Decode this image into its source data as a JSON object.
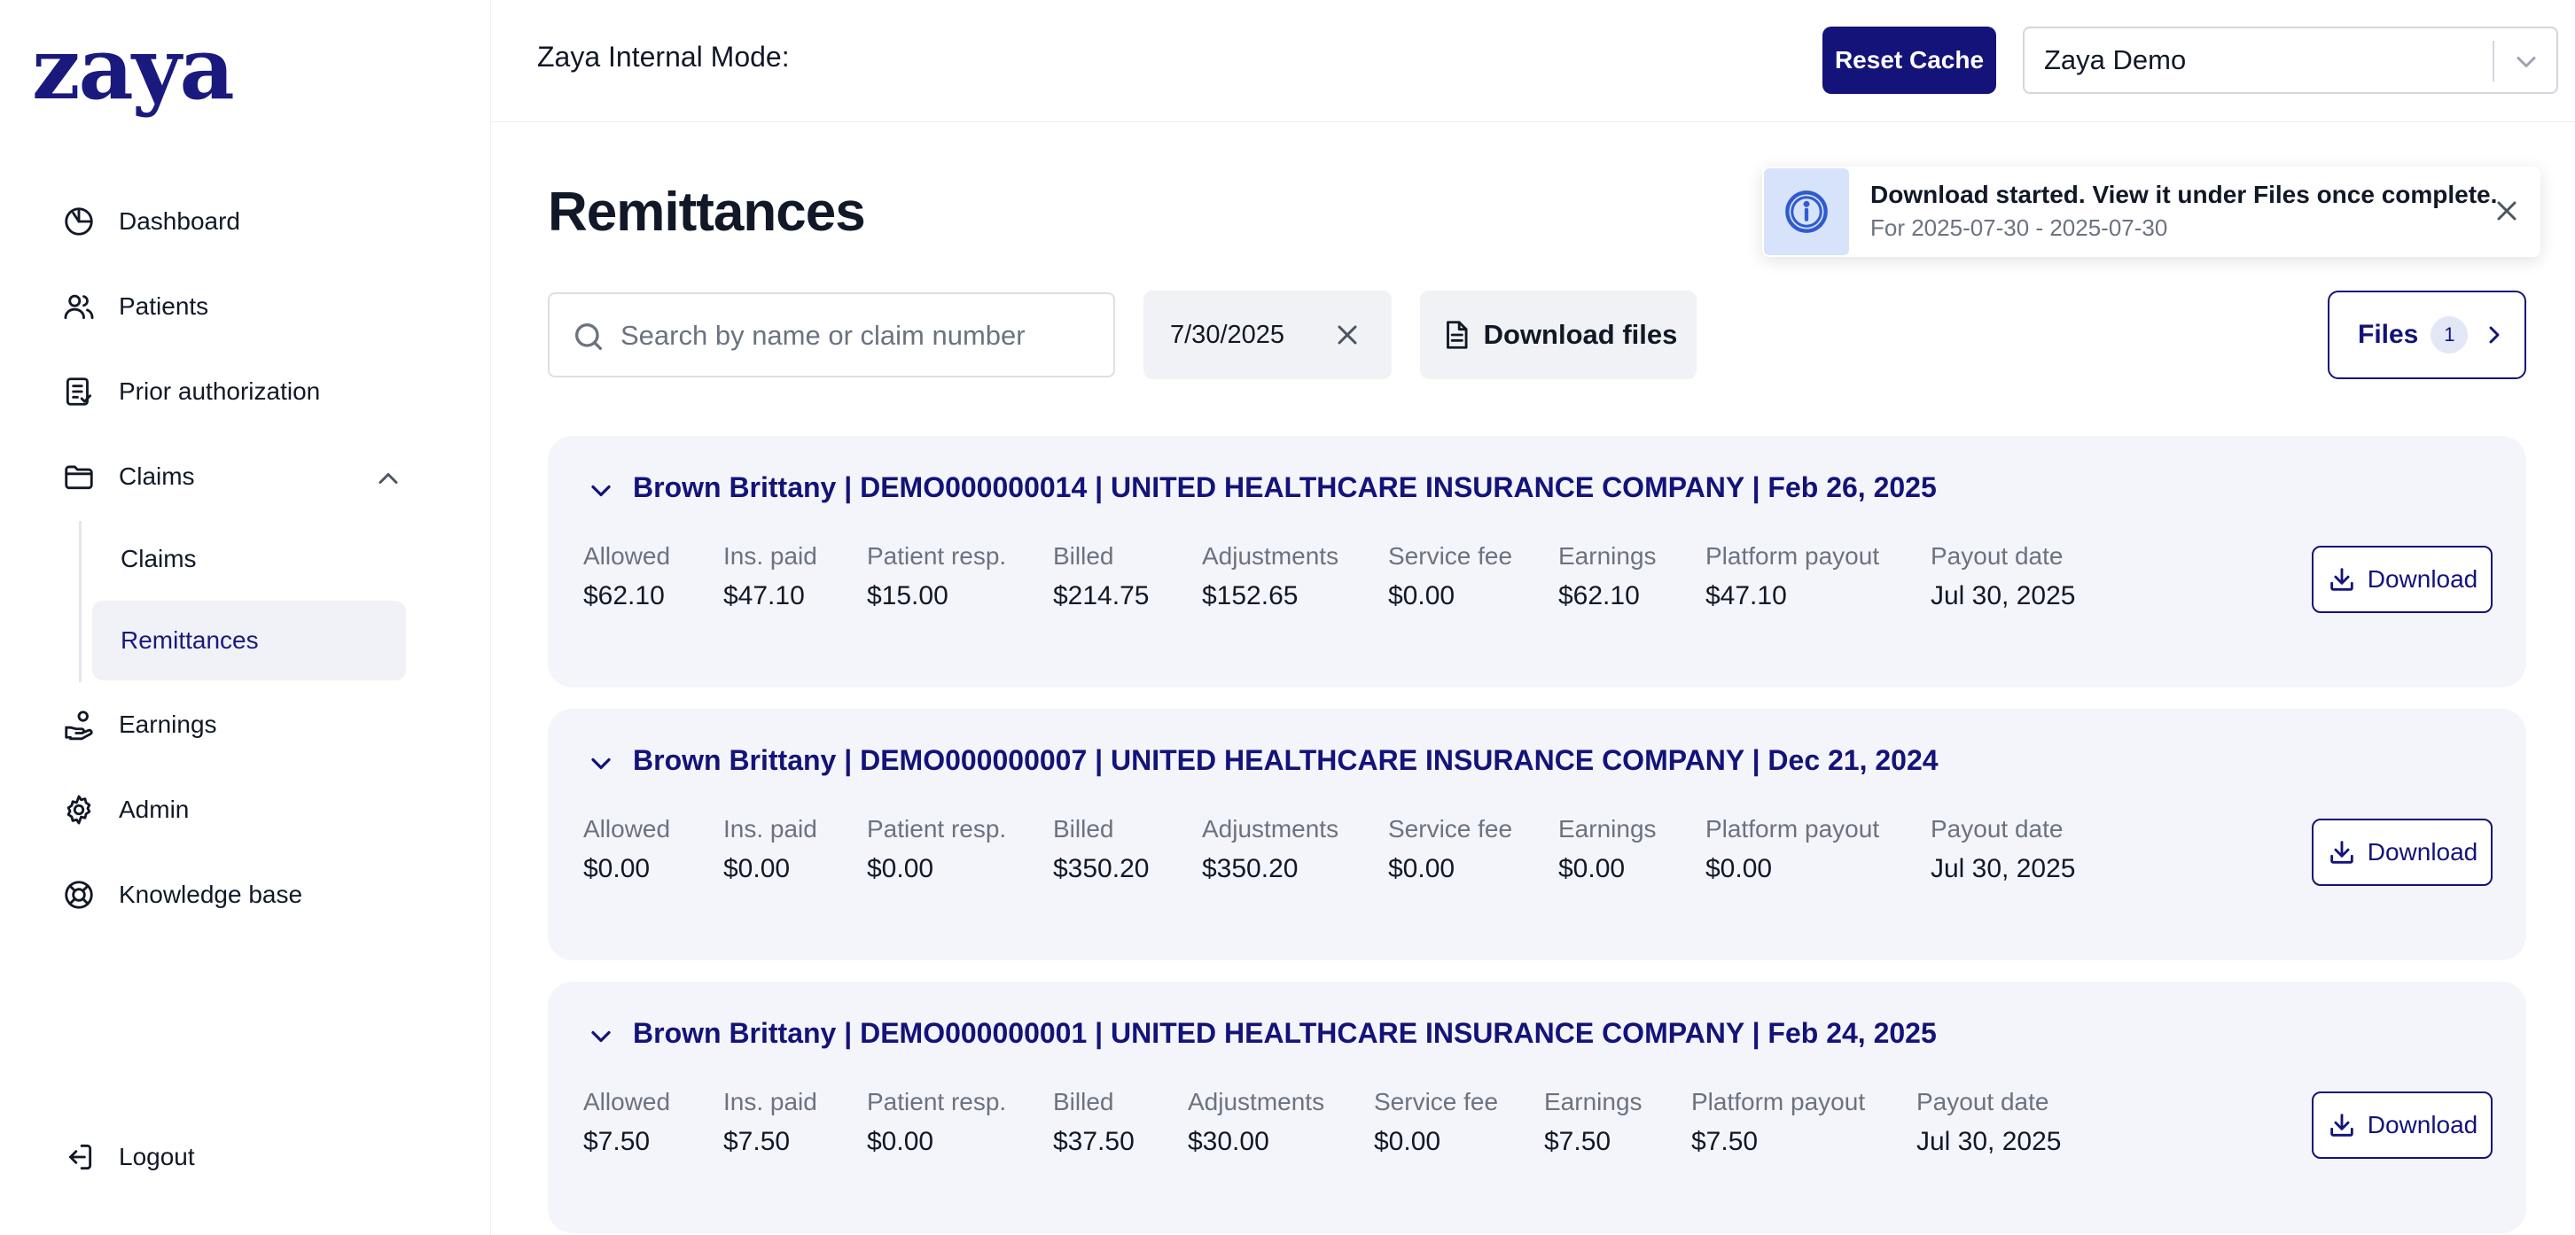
{
  "sidebar": {
    "logo": "zaya",
    "items": [
      {
        "label": "Dashboard",
        "icon": "dashboard-icon"
      },
      {
        "label": "Patients",
        "icon": "users-icon"
      },
      {
        "label": "Prior authorization",
        "icon": "clipboard-icon"
      },
      {
        "label": "Claims",
        "icon": "folder-icon"
      },
      {
        "label": "Earnings",
        "icon": "hand-coin-icon"
      },
      {
        "label": "Admin",
        "icon": "gear-icon"
      },
      {
        "label": "Knowledge base",
        "icon": "lifebuoy-icon"
      }
    ],
    "claims_sub": [
      {
        "label": "Claims",
        "active": false
      },
      {
        "label": "Remittances",
        "active": true
      }
    ],
    "logout": "Logout"
  },
  "topbar": {
    "internal_mode_label": "Zaya Internal Mode:",
    "reset_cache": "Reset Cache",
    "org_select": "Zaya Demo"
  },
  "page": {
    "title": "Remittances"
  },
  "toast": {
    "title": "Download started. View it under Files once complete.",
    "subtitle": "For 2025-07-30 - 2025-07-30"
  },
  "filters": {
    "search_placeholder": "Search by name or claim number",
    "date": "7/30/2025",
    "download_files": "Download files",
    "files_label": "Files",
    "files_count": "1"
  },
  "metric_labels": {
    "allowed": "Allowed",
    "ins_paid": "Ins. paid",
    "patient_resp": "Patient resp.",
    "billed": "Billed",
    "adjustments": "Adjustments",
    "service_fee": "Service fee",
    "earnings": "Earnings",
    "platform_payout": "Platform payout",
    "payout_date": "Payout date"
  },
  "download_label": "Download",
  "remittances": [
    {
      "title": "Brown Brittany | DEMO000000014 | UNITED HEALTHCARE INSURANCE COMPANY | Feb 26, 2025",
      "allowed": "$62.10",
      "ins_paid": "$47.10",
      "patient_resp": "$15.00",
      "billed": "$214.75",
      "adjustments": "$152.65",
      "service_fee": "$0.00",
      "earnings": "$62.10",
      "platform_payout": "$47.10",
      "payout_date": "Jul 30, 2025"
    },
    {
      "title": "Brown Brittany | DEMO000000007 | UNITED HEALTHCARE INSURANCE COMPANY | Dec 21, 2024",
      "allowed": "$0.00",
      "ins_paid": "$0.00",
      "patient_resp": "$0.00",
      "billed": "$350.20",
      "adjustments": "$350.20",
      "service_fee": "$0.00",
      "earnings": "$0.00",
      "platform_payout": "$0.00",
      "payout_date": "Jul 30, 2025"
    },
    {
      "title": "Brown Brittany | DEMO000000001 | UNITED HEALTHCARE INSURANCE COMPANY | Feb 24, 2025",
      "allowed": "$7.50",
      "ins_paid": "$7.50",
      "patient_resp": "$0.00",
      "billed": "$37.50",
      "adjustments": "$30.00",
      "service_fee": "$0.00",
      "earnings": "$7.50",
      "platform_payout": "$7.50",
      "payout_date": "Jul 30, 2025"
    }
  ],
  "colors": {
    "brand": "#13137a",
    "card_bg": "#f4f5fa",
    "muted_text": "#6b7280"
  }
}
